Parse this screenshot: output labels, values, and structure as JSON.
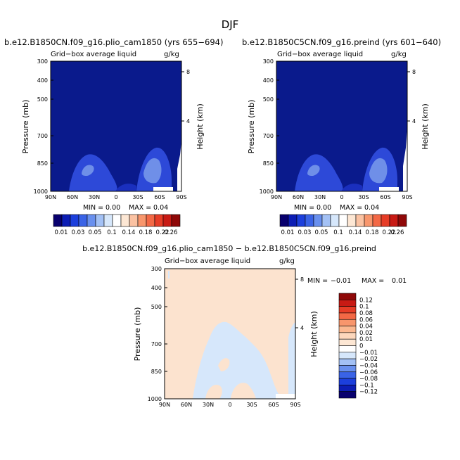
{
  "page": {
    "title": "DJF"
  },
  "colors": {
    "plot_bg": "#0a1a8c",
    "contour_light": "#6f8fe8",
    "contour_mid": "#2d49d8",
    "contour_dark": "#1a2fbe",
    "diff_pos": "#fce3cf",
    "diff_neg": "#d6e7fb",
    "white": "#ffffff"
  },
  "chart_data": [
    {
      "type": "heatmap",
      "title": "b.e12.B1850CN.f09_g16.plio_cam1850 (yrs 655−694)",
      "subtitle_left": "Grid−box average liquid",
      "subtitle_right": "g/kg",
      "xlabel": "",
      "ylabel": "Pressure (mb)",
      "ylabel_right": "Height (km)",
      "x_ticks": [
        "90N",
        "60N",
        "30N",
        "0",
        "30S",
        "60S",
        "90S"
      ],
      "y_ticks": [
        "300",
        "400",
        "500",
        "700",
        "850",
        "1000"
      ],
      "y_ticks_right": [
        "8",
        "4"
      ],
      "min_label": "MIN =",
      "min_value": "0.00",
      "max_label": "MAX =",
      "max_value": "0.04",
      "colorbar": {
        "orientation": "horizontal",
        "labels": [
          "0.01",
          "0.03",
          "0.05",
          "0.1",
          "0.14",
          "0.18",
          "0.22",
          "0.26"
        ],
        "colors": [
          "#08006e",
          "#0c1db4",
          "#1c3fdc",
          "#3a63e6",
          "#6990ee",
          "#a3c1f5",
          "#d6e7fb",
          "#ffffff",
          "#fde7d4",
          "#fbc2a2",
          "#f8966c",
          "#f36845",
          "#e63c26",
          "#c81a14",
          "#8f0808"
        ]
      }
    },
    {
      "type": "heatmap",
      "title": "b.e12.B1850C5CN.f09_g16.preind (yrs 601−640)",
      "subtitle_left": "Grid−box average liquid",
      "subtitle_right": "g/kg",
      "xlabel": "",
      "ylabel": "Pressure (mb)",
      "ylabel_right": "Height (km)",
      "x_ticks": [
        "90N",
        "60N",
        "30N",
        "0",
        "30S",
        "60S",
        "90S"
      ],
      "y_ticks": [
        "300",
        "400",
        "500",
        "700",
        "850",
        "1000"
      ],
      "y_ticks_right": [
        "8",
        "4"
      ],
      "min_label": "MIN =",
      "min_value": "0.00",
      "max_label": "MAX =",
      "max_value": "0.04",
      "colorbar": {
        "orientation": "horizontal",
        "labels": [
          "0.01",
          "0.03",
          "0.05",
          "0.1",
          "0.14",
          "0.18",
          "0.22",
          "0.26"
        ],
        "colors": [
          "#08006e",
          "#0c1db4",
          "#1c3fdc",
          "#3a63e6",
          "#6990ee",
          "#a3c1f5",
          "#d6e7fb",
          "#ffffff",
          "#fde7d4",
          "#fbc2a2",
          "#f8966c",
          "#f36845",
          "#e63c26",
          "#c81a14",
          "#8f0808"
        ]
      }
    },
    {
      "type": "heatmap",
      "title": "b.e12.B1850CN.f09_g16.plio_cam1850 − b.e12.B1850C5CN.f09_g16.preind",
      "subtitle_left": "Grid−box average liquid",
      "subtitle_right": "g/kg",
      "xlabel": "",
      "ylabel": "Pressure (mb)",
      "ylabel_right": "Height (km)",
      "x_ticks": [
        "90N",
        "60N",
        "30N",
        "0",
        "30S",
        "60S",
        "90S"
      ],
      "y_ticks": [
        "300",
        "400",
        "500",
        "700",
        "850",
        "1000"
      ],
      "y_ticks_right": [
        "8",
        "4"
      ],
      "min_label": "MIN =",
      "min_value": "−0.01",
      "max_label": "MAX =",
      "max_value": "0.01",
      "colorbar": {
        "orientation": "vertical",
        "labels": [
          "0.12",
          "0.1",
          "0.08",
          "0.06",
          "0.04",
          "0.02",
          "0.01",
          "0",
          "−0.01",
          "−0.02",
          "−0.04",
          "−0.06",
          "−0.08",
          "−0.1",
          "−0.12"
        ],
        "colors": [
          "#8f0808",
          "#c81a14",
          "#e63c26",
          "#f36845",
          "#f8966c",
          "#fbb890",
          "#fcd7bc",
          "#fde7d4",
          "#ffffff",
          "#d6e7fb",
          "#a3c1f5",
          "#6990ee",
          "#3a63e6",
          "#1c3fdc",
          "#0c1db4",
          "#08006e"
        ]
      }
    }
  ]
}
